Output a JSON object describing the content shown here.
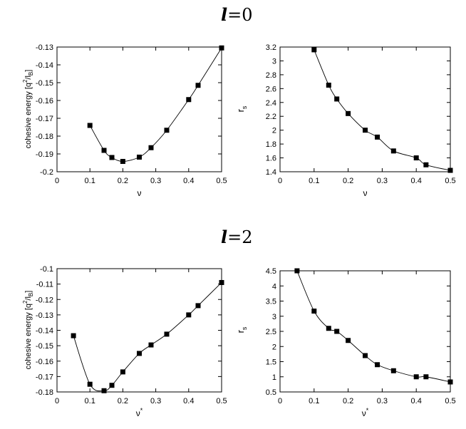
{
  "sections": [
    {
      "title_var": "l",
      "title_eq": "=0"
    },
    {
      "title_var": "l",
      "title_eq": "=2"
    }
  ],
  "chart_data": [
    {
      "type": "line",
      "marker": "square",
      "title": "",
      "xlabel": "ν",
      "ylabel": "cohesive energy [q²/l_B]",
      "ylabel_parts": {
        "base": "cohesive energy [q",
        "sup": "2",
        "mid": "/l",
        "sub": "B",
        "end": "]"
      },
      "xlim": [
        0,
        0.5
      ],
      "ylim": [
        -0.2,
        -0.13
      ],
      "xticks": [
        0,
        0.1,
        0.2,
        0.3,
        0.4,
        0.5
      ],
      "xtick_labels": [
        "0",
        "0.1",
        "0.2",
        "0.3",
        "0.4",
        "0.5"
      ],
      "yticks": [
        -0.2,
        -0.19,
        -0.18,
        -0.17,
        -0.16,
        -0.15,
        -0.14,
        -0.13
      ],
      "ytick_labels": [
        "-0.2",
        "-0.19",
        "-0.18",
        "-0.17",
        "-0.16",
        "-0.15",
        "-0.14",
        "-0.13"
      ],
      "grid": false,
      "series": [
        {
          "x": [
            0.1,
            0.1429,
            0.1667,
            0.2,
            0.25,
            0.2857,
            0.3333,
            0.4,
            0.4286,
            0.5
          ],
          "y": [
            -0.174,
            -0.188,
            -0.192,
            -0.1942,
            -0.1918,
            -0.1865,
            -0.1767,
            -0.1595,
            -0.1515,
            -0.1305
          ]
        }
      ]
    },
    {
      "type": "line",
      "marker": "square",
      "title": "",
      "xlabel": "ν",
      "ylabel": "r_s",
      "ylabel_parts": {
        "base": "r",
        "sub": "s"
      },
      "xlim": [
        0,
        0.5
      ],
      "ylim": [
        1.4,
        3.2
      ],
      "xticks": [
        0,
        0.1,
        0.2,
        0.3,
        0.4,
        0.5
      ],
      "xtick_labels": [
        "0",
        "0.1",
        "0.2",
        "0.3",
        "0.4",
        "0.5"
      ],
      "yticks": [
        1.4,
        1.6,
        1.8,
        2,
        2.2,
        2.4,
        2.6,
        2.8,
        3,
        3.2
      ],
      "ytick_labels": [
        "1.4",
        "1.6",
        "1.8",
        "2",
        "2.2",
        "2.4",
        "2.6",
        "2.8",
        "3",
        "3.2"
      ],
      "grid": false,
      "series": [
        {
          "x": [
            0.1,
            0.1429,
            0.1667,
            0.2,
            0.25,
            0.2857,
            0.3333,
            0.4,
            0.4286,
            0.5
          ],
          "y": [
            3.16,
            2.65,
            2.45,
            2.24,
            2.0,
            1.9,
            1.7,
            1.6,
            1.5,
            1.42
          ]
        }
      ]
    },
    {
      "type": "line",
      "marker": "square",
      "title": "",
      "xlabel": "ν*",
      "xlabel_parts": {
        "base": "ν",
        "sup": "*"
      },
      "ylabel": "cohesive energy [q²/l_B]",
      "ylabel_parts": {
        "base": "cohesive energy [q",
        "sup": "2",
        "mid": "/l",
        "sub": "B",
        "end": "]"
      },
      "xlim": [
        0,
        0.5
      ],
      "ylim": [
        -0.18,
        -0.1
      ],
      "xticks": [
        0,
        0.1,
        0.2,
        0.3,
        0.4,
        0.5
      ],
      "xtick_labels": [
        "0",
        "0.1",
        "0.2",
        "0.3",
        "0.4",
        "0.5"
      ],
      "yticks": [
        -0.18,
        -0.17,
        -0.16,
        -0.15,
        -0.14,
        -0.13,
        -0.12,
        -0.11,
        -0.1
      ],
      "ytick_labels": [
        "-0.18",
        "-0.17",
        "-0.16",
        "-0.15",
        "-0.14",
        "-0.13",
        "-0.12",
        "-0.11",
        "-0.1"
      ],
      "grid": false,
      "series": [
        {
          "x": [
            0.05,
            0.1,
            0.1429,
            0.1667,
            0.2,
            0.25,
            0.2857,
            0.3333,
            0.4,
            0.4286,
            0.5
          ],
          "y": [
            -0.1435,
            -0.175,
            -0.1792,
            -0.1757,
            -0.167,
            -0.155,
            -0.1495,
            -0.1425,
            -0.13,
            -0.124,
            -0.109
          ]
        }
      ]
    },
    {
      "type": "line",
      "marker": "square",
      "title": "",
      "xlabel": "ν*",
      "xlabel_parts": {
        "base": "ν",
        "sup": "*"
      },
      "ylabel": "r_s",
      "ylabel_parts": {
        "base": "r",
        "sub": "s"
      },
      "xlim": [
        0,
        0.5
      ],
      "ylim": [
        0.5,
        4.5
      ],
      "xticks": [
        0,
        0.1,
        0.2,
        0.3,
        0.4,
        0.5
      ],
      "xtick_labels": [
        "0",
        "0.1",
        "0.2",
        "0.3",
        "0.4",
        "0.5"
      ],
      "yticks": [
        0.5,
        1,
        1.5,
        2,
        2.5,
        3,
        3.5,
        4,
        4.5
      ],
      "ytick_labels": [
        "0.5",
        "1",
        "1.5",
        "2",
        "2.5",
        "3",
        "3.5",
        "4",
        "4.5"
      ],
      "grid": false,
      "series": [
        {
          "x": [
            0.05,
            0.1,
            0.1429,
            0.1667,
            0.2,
            0.25,
            0.2857,
            0.3333,
            0.4,
            0.4286,
            0.5
          ],
          "y": [
            4.5,
            3.17,
            2.6,
            2.5,
            2.2,
            1.7,
            1.4,
            1.2,
            1.0,
            1.0,
            0.83
          ]
        }
      ]
    }
  ]
}
